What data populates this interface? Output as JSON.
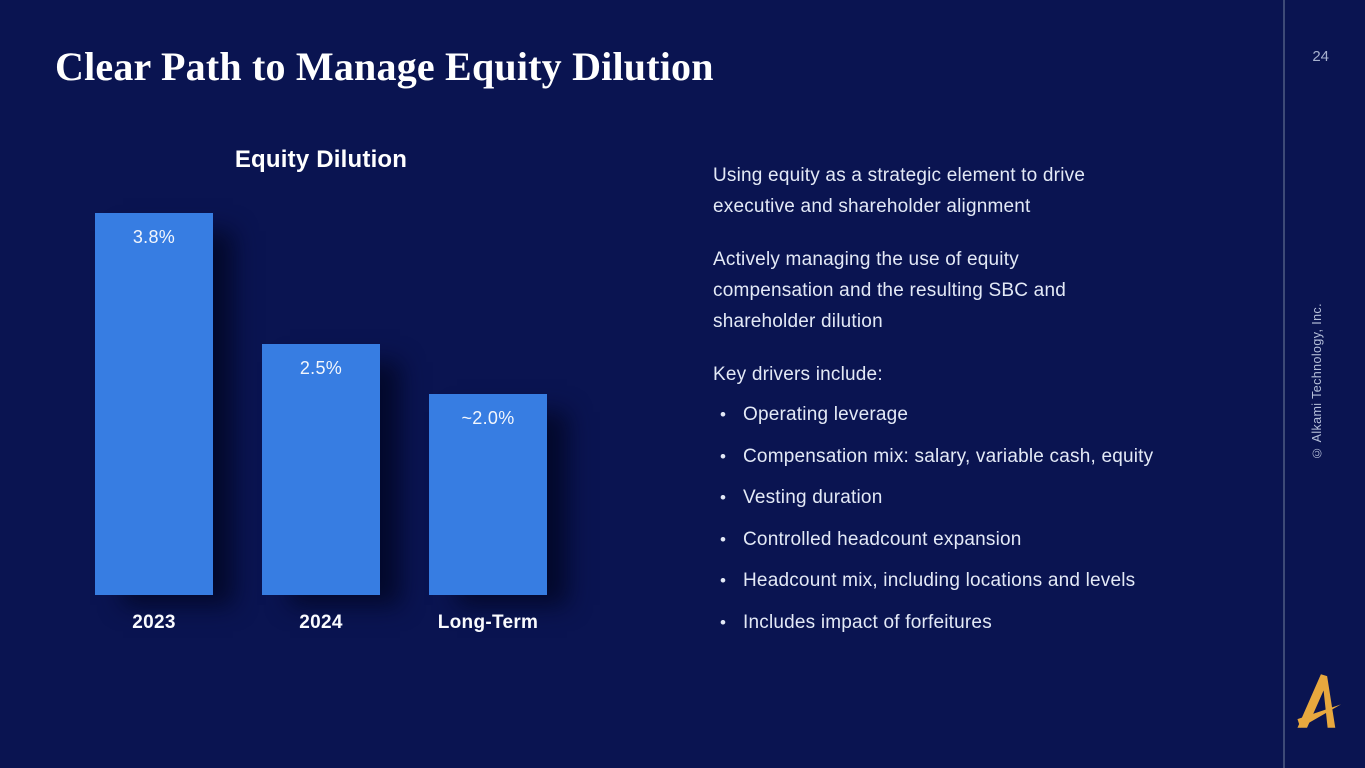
{
  "slide": {
    "title": "Clear Path to Manage Equity Dilution",
    "page_number": "24",
    "copyright": "© Alkami Technology, Inc.",
    "logo_name": "alkami-a-logo"
  },
  "chart_data": {
    "type": "bar",
    "title": "Equity Dilution",
    "categories": [
      "2023",
      "2024",
      "Long-Term"
    ],
    "values": [
      3.8,
      2.5,
      2.0
    ],
    "value_labels": [
      "3.8%",
      "2.5%",
      "~2.0%"
    ],
    "ylim": [
      0,
      3.8
    ],
    "xlabel": "",
    "ylabel": "",
    "grid": false,
    "legend": false,
    "bar_color": "#377de2",
    "value_label_position": "inside-top"
  },
  "content": {
    "paragraphs": [
      "Using equity as a strategic element to drive\nexecutive and shareholder alignment",
      "Actively managing the use of equity\ncompensation and the resulting SBC and\nshareholder dilution",
      "Key drivers include:"
    ],
    "bullet_char": "•",
    "bullets": [
      "Operating leverage",
      "Compensation mix: salary, variable cash, equity",
      "Vesting duration",
      "Controlled headcount expansion",
      "Headcount mix, including locations and levels",
      "Includes impact of forfeitures"
    ]
  },
  "colors": {
    "background": "#0a1451",
    "bar_blue": "#377de2",
    "accent_gold": "#e8a83e",
    "body_text": "#e3e9f6",
    "divider": "#3e4a77"
  }
}
